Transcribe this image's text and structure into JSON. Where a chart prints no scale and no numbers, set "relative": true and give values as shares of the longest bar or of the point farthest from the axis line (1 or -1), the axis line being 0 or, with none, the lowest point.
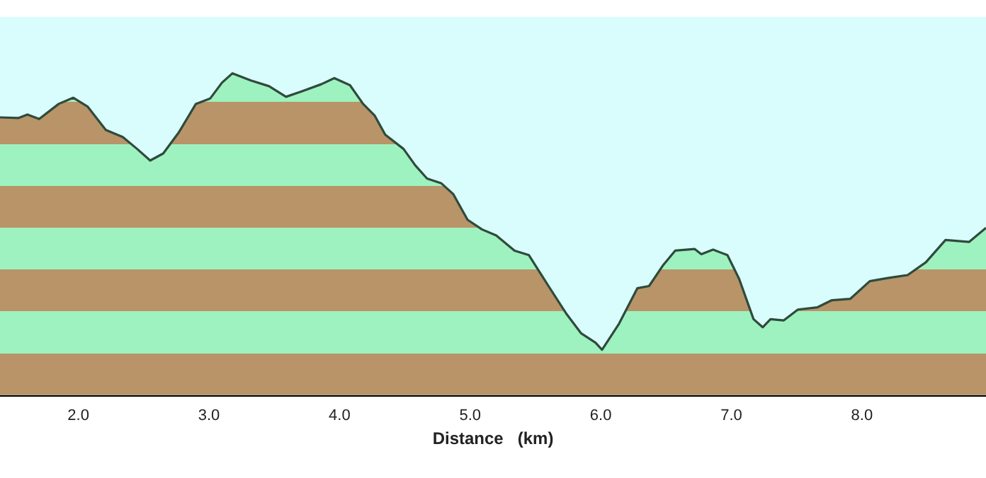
{
  "chart_data": {
    "type": "area",
    "xlabel": "Distance   (km)",
    "relative": true,
    "xlim": [
      1.4,
      8.95
    ],
    "xticks": [
      {
        "value": 2,
        "label": "2.0"
      },
      {
        "value": 3,
        "label": "3.0"
      },
      {
        "value": 4,
        "label": "4.0"
      },
      {
        "value": 5,
        "label": "5.0"
      },
      {
        "value": 6,
        "label": "6.0"
      },
      {
        "value": 7,
        "label": "7.0"
      },
      {
        "value": 8,
        "label": "8.0"
      }
    ],
    "x": [
      1.4,
      1.54,
      1.61,
      1.7,
      1.85,
      1.96,
      2.07,
      2.21,
      2.34,
      2.45,
      2.55,
      2.65,
      2.77,
      2.9,
      3.01,
      3.1,
      3.18,
      3.32,
      3.46,
      3.59,
      3.71,
      3.86,
      3.96,
      4.08,
      4.18,
      4.27,
      4.35,
      4.49,
      4.58,
      4.67,
      4.78,
      4.87,
      4.98,
      5.09,
      5.2,
      5.34,
      5.45,
      5.6,
      5.74,
      5.85,
      5.96,
      6.01,
      6.14,
      6.28,
      6.37,
      6.48,
      6.57,
      6.72,
      6.77,
      6.86,
      6.97,
      7.06,
      7.17,
      7.24,
      7.3,
      7.4,
      7.51,
      7.66,
      7.77,
      7.91,
      8.06,
      8.2,
      8.35,
      8.49,
      8.64,
      8.82,
      8.95
    ],
    "series": [
      {
        "color": "#2f4a3c",
        "values": [
          0.863,
          0.861,
          0.872,
          0.858,
          0.905,
          0.924,
          0.897,
          0.824,
          0.802,
          0.765,
          0.729,
          0.751,
          0.817,
          0.905,
          0.922,
          0.971,
          1.0,
          0.978,
          0.96,
          0.927,
          0.944,
          0.966,
          0.985,
          0.963,
          0.905,
          0.868,
          0.809,
          0.765,
          0.714,
          0.673,
          0.658,
          0.625,
          0.545,
          0.515,
          0.496,
          0.449,
          0.435,
          0.339,
          0.251,
          0.192,
          0.163,
          0.141,
          0.222,
          0.332,
          0.339,
          0.405,
          0.449,
          0.454,
          0.438,
          0.452,
          0.435,
          0.361,
          0.236,
          0.211,
          0.236,
          0.232,
          0.266,
          0.273,
          0.295,
          0.299,
          0.354,
          0.364,
          0.373,
          0.413,
          0.482,
          0.476,
          0.52
        ]
      }
    ],
    "grid": false,
    "legend": false
  }
}
